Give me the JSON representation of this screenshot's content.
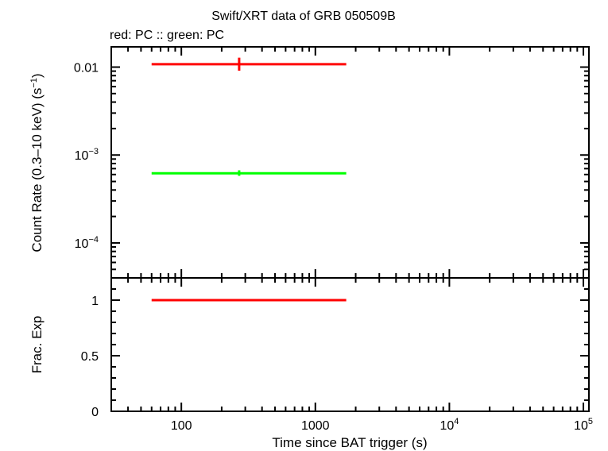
{
  "chart_data": {
    "title": "Swift/XRT data of GRB 050509B",
    "subtitle": "red: PC  :: green: PC",
    "xlabel": "Time since BAT trigger (s)",
    "x_scale": "log",
    "xlim": [
      30,
      110000
    ],
    "x_ticks": [
      {
        "value": 100,
        "label": "100"
      },
      {
        "value": 1000,
        "label": "1000"
      },
      {
        "value": 10000,
        "base": "10",
        "exp": "4"
      },
      {
        "value": 100000,
        "base": "10",
        "exp": "5"
      }
    ],
    "panels": [
      {
        "type": "scatter",
        "ylabel": "Count Rate (0.3–10 keV) (s",
        "ylabel_exp": "−1",
        "ylabel_close": ")",
        "y_scale": "log",
        "ylim": [
          4e-05,
          0.017
        ],
        "y_ticks": [
          {
            "value": 0.01,
            "label": "0.01"
          },
          {
            "value": 0.001,
            "base": "10",
            "exp": "−3"
          },
          {
            "value": 0.0001,
            "base": "10",
            "exp": "−4"
          }
        ],
        "series": [
          {
            "color": "#ff0000",
            "points": [
              {
                "x": 270,
                "xmin": 60,
                "xmax": 1700,
                "y": 0.0108,
                "ylo": 0.0091,
                "yhi": 0.0128
              }
            ]
          },
          {
            "color": "#00ff00",
            "points": [
              {
                "x": 270,
                "xmin": 60,
                "xmax": 1700,
                "y": 0.00062,
                "ylo": 0.00058,
                "yhi": 0.00067
              }
            ]
          }
        ]
      },
      {
        "type": "line",
        "ylabel": "Frac. Exp",
        "y_scale": "linear",
        "ylim": [
          0,
          1.2
        ],
        "y_ticks": [
          {
            "value": 0,
            "label": "0"
          },
          {
            "value": 0.5,
            "label": "0.5"
          },
          {
            "value": 1,
            "label": "1"
          }
        ],
        "series": [
          {
            "color": "#ff0000",
            "points": [
              {
                "x": 270,
                "xmin": 60,
                "xmax": 1700,
                "y": 1
              }
            ]
          }
        ]
      }
    ]
  }
}
